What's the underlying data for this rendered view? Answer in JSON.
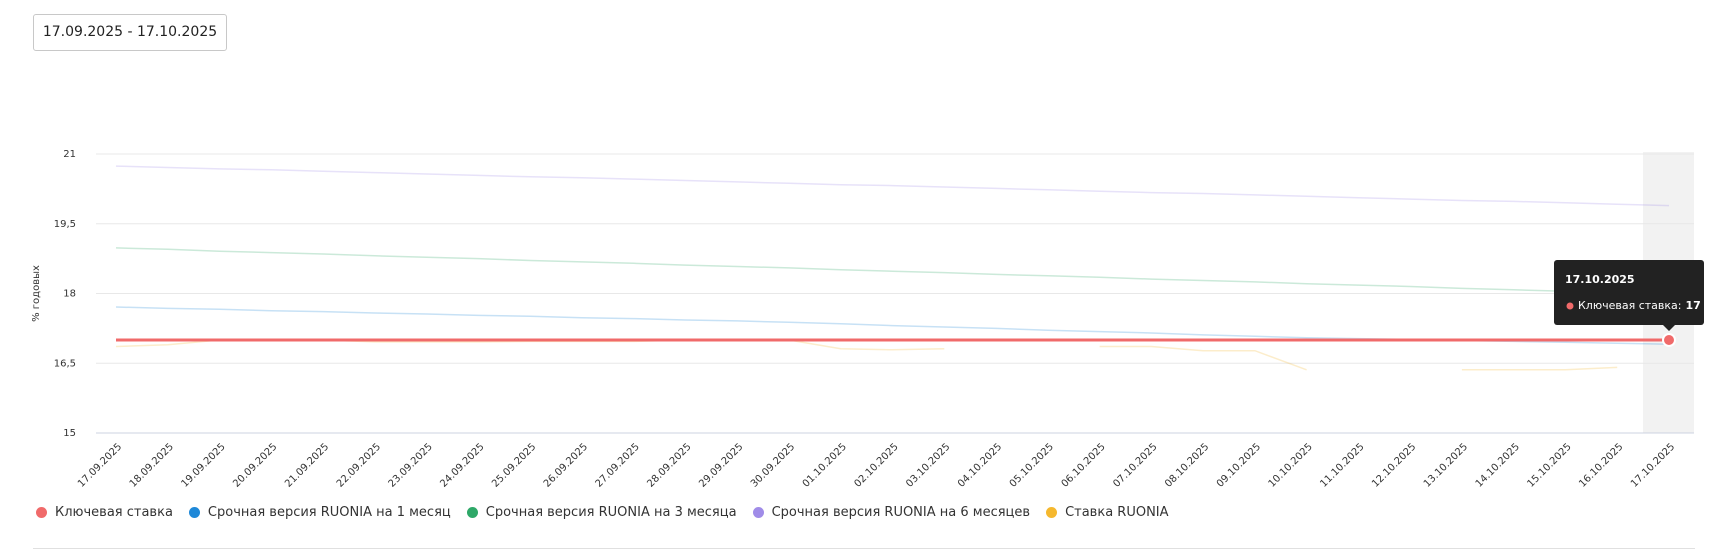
{
  "date_range": "17.09.2025 - 17.10.2025",
  "chart_data": {
    "type": "line",
    "ylabel": "% годовых",
    "categories": [
      "17.09.2025",
      "18.09.2025",
      "19.09.2025",
      "20.09.2025",
      "21.09.2025",
      "22.09.2025",
      "23.09.2025",
      "24.09.2025",
      "25.09.2025",
      "26.09.2025",
      "27.09.2025",
      "28.09.2025",
      "29.09.2025",
      "30.09.2025",
      "01.10.2025",
      "02.10.2025",
      "03.10.2025",
      "04.10.2025",
      "05.10.2025",
      "06.10.2025",
      "07.10.2025",
      "08.10.2025",
      "09.10.2025",
      "10.10.2025",
      "11.10.2025",
      "12.10.2025",
      "13.10.2025",
      "14.10.2025",
      "15.10.2025",
      "16.10.2025",
      "17.10.2025"
    ],
    "ylim": [
      15,
      21
    ],
    "yticks": [
      15,
      {
        "value": 16.5,
        "label": "16,5"
      },
      18,
      {
        "value": 19.5,
        "label": "19,5"
      },
      21
    ],
    "grid": true,
    "series": [
      {
        "name": "Ключевая ставка",
        "color": "#f06a6a",
        "values": [
          17,
          17,
          17,
          17,
          17,
          17,
          17,
          17,
          17,
          17,
          17,
          17,
          17,
          17,
          17,
          17,
          17,
          17,
          17,
          17,
          17,
          17,
          17,
          17,
          17,
          17,
          17,
          17,
          17,
          17,
          17
        ]
      },
      {
        "name": "Срочная версия RUONIA на 1 месяц",
        "color": "#1e88d8",
        "values": [
          17.71,
          17.68,
          17.66,
          17.63,
          17.61,
          17.58,
          17.56,
          17.53,
          17.51,
          17.48,
          17.46,
          17.43,
          17.41,
          17.38,
          17.35,
          17.31,
          17.28,
          17.25,
          17.21,
          17.18,
          17.15,
          17.11,
          17.08,
          17.05,
          17.03,
          17.01,
          16.99,
          16.97,
          16.95,
          16.93,
          16.91
        ]
      },
      {
        "name": "Срочная версия RUONIA на 3 месяца",
        "color": "#2ea868",
        "values": [
          18.98,
          18.95,
          18.91,
          18.88,
          18.85,
          18.81,
          18.78,
          18.75,
          18.71,
          18.68,
          18.65,
          18.61,
          18.58,
          18.55,
          18.51,
          18.48,
          18.45,
          18.41,
          18.38,
          18.35,
          18.31,
          18.28,
          18.25,
          18.21,
          18.18,
          18.15,
          18.11,
          18.08,
          18.05,
          18.01,
          17.98
        ]
      },
      {
        "name": "Срочная версия RUONIA на 6 месяцев",
        "color": "#a08ce8",
        "values": [
          20.74,
          20.71,
          20.68,
          20.66,
          20.63,
          20.6,
          20.57,
          20.54,
          20.51,
          20.49,
          20.46,
          20.43,
          20.4,
          20.37,
          20.34,
          20.32,
          20.29,
          20.26,
          20.23,
          20.2,
          20.17,
          20.15,
          20.12,
          20.09,
          20.06,
          20.03,
          20.0,
          19.98,
          19.95,
          19.92,
          19.89
        ]
      },
      {
        "name": "Ставка RUONIA",
        "color": "#f5b82e",
        "values": [
          16.86,
          16.9,
          17.0,
          17.0,
          17.0,
          16.96,
          16.96,
          16.96,
          16.97,
          16.97,
          16.97,
          17.0,
          17.0,
          17.0,
          16.81,
          16.79,
          16.81,
          null,
          null,
          16.86,
          16.86,
          16.77,
          16.77,
          16.36,
          null,
          null,
          16.36,
          16.36,
          16.36,
          16.41,
          null
        ]
      }
    ],
    "tooltip": {
      "label": "Ключевая ставка:"
    }
  }
}
